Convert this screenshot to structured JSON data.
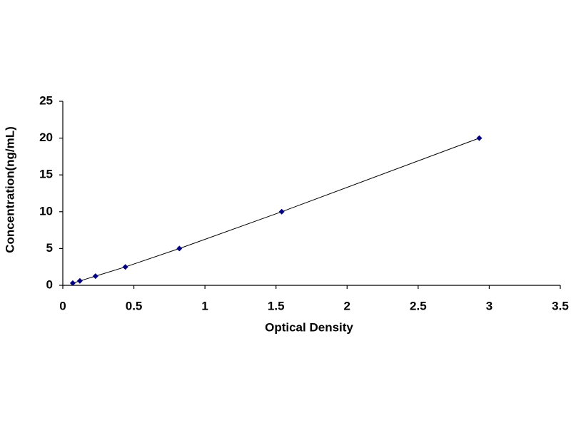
{
  "chart_data": {
    "type": "line",
    "x_label": "Optical Density",
    "y_label": "Concentration(ng/mL)",
    "x": [
      0.07,
      0.12,
      0.23,
      0.44,
      0.82,
      1.54,
      2.93
    ],
    "series": [
      {
        "color": "#000080",
        "values": [
          0.3,
          0.6,
          1.25,
          2.5,
          5,
          10,
          20
        ]
      }
    ],
    "xlim": [
      0,
      3.5
    ],
    "xticks": [
      0,
      0.5,
      1,
      1.5,
      2,
      2.5,
      3,
      3.5
    ],
    "ylim": [
      0,
      25
    ],
    "yticks": [
      0,
      5,
      10,
      15,
      20,
      25
    ],
    "grid": false
  }
}
